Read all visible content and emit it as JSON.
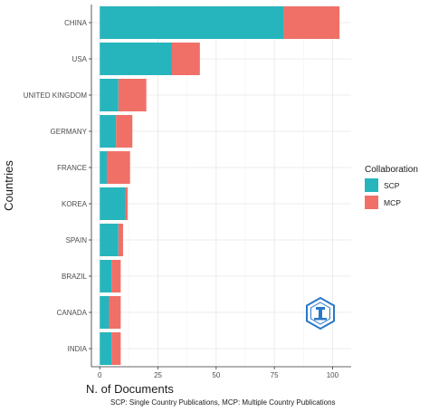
{
  "chart_data": {
    "type": "bar",
    "orientation": "horizontal",
    "stacked": true,
    "categories": [
      "CHINA",
      "USA",
      "UNITED KINGDOM",
      "GERMANY",
      "FRANCE",
      "KOREA",
      "SPAIN",
      "BRAZIL",
      "CANADA",
      "INDIA"
    ],
    "series": [
      {
        "name": "SCP",
        "color": "#26b5bd",
        "values": [
          79,
          31,
          8,
          7,
          3,
          11,
          8,
          5,
          4,
          5
        ]
      },
      {
        "name": "MCP",
        "color": "#f07068",
        "values": [
          24,
          12,
          12,
          7,
          10,
          1,
          2,
          4,
          5,
          4
        ]
      }
    ],
    "xlabel": "N. of Documents",
    "ylabel": "Countries",
    "xlim": [
      -3.6,
      108
    ],
    "xticks": [
      0,
      25,
      50,
      75,
      100
    ],
    "grid": true,
    "legend": {
      "title": "Collaboration",
      "position": "right"
    },
    "caption": "SCP: Single Country Publications, MCP: Multiple Country Publications"
  },
  "watermark_icon": "hexagon-logo-icon"
}
